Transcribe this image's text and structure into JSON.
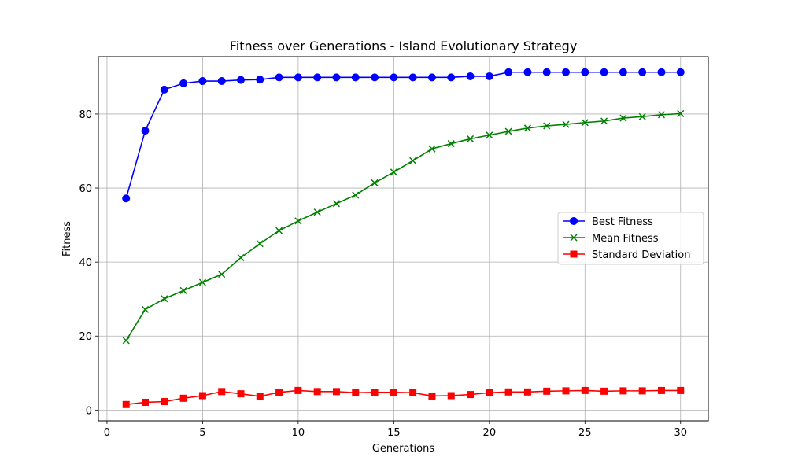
{
  "chart_data": {
    "type": "line",
    "title": "Fitness over Generations - Island Evolutionary Strategy",
    "xlabel": "Generations",
    "ylabel": "Fitness",
    "xlim": [
      -0.45,
      31.45
    ],
    "ylim": [
      -2.9,
      95.5
    ],
    "xticks": [
      0,
      5,
      10,
      15,
      20,
      25,
      30
    ],
    "yticks": [
      0,
      20,
      40,
      60,
      80
    ],
    "grid": true,
    "legend_position": "center-right",
    "x": [
      1,
      2,
      3,
      4,
      5,
      6,
      7,
      8,
      9,
      10,
      11,
      12,
      13,
      14,
      15,
      16,
      17,
      18,
      19,
      20,
      21,
      22,
      23,
      24,
      25,
      26,
      27,
      28,
      29,
      30
    ],
    "series": [
      {
        "name": "Best Fitness",
        "color": "#0000ff",
        "marker": "circle",
        "values": [
          57.2,
          75.5,
          86.6,
          88.3,
          88.9,
          88.9,
          89.2,
          89.3,
          89.9,
          89.9,
          89.9,
          89.9,
          89.9,
          89.9,
          89.9,
          89.9,
          89.9,
          89.9,
          90.2,
          90.2,
          91.3,
          91.3,
          91.3,
          91.3,
          91.3,
          91.3,
          91.3,
          91.3,
          91.3,
          91.3
        ]
      },
      {
        "name": "Mean Fitness",
        "color": "#008000",
        "marker": "x",
        "values": [
          18.8,
          27.2,
          30.1,
          32.3,
          34.5,
          36.7,
          41.2,
          45.0,
          48.5,
          51.1,
          53.5,
          55.8,
          58.1,
          61.4,
          64.3,
          67.4,
          70.6,
          72.0,
          73.3,
          74.3,
          75.3,
          76.2,
          76.8,
          77.2,
          77.7,
          78.1,
          78.9,
          79.3,
          79.8,
          80.1
        ]
      },
      {
        "name": "Standard Deviation",
        "color": "#ff0000",
        "marker": "square",
        "values": [
          1.5,
          2.1,
          2.3,
          3.2,
          3.9,
          5.0,
          4.4,
          3.7,
          4.8,
          5.3,
          5.0,
          5.0,
          4.7,
          4.8,
          4.8,
          4.7,
          3.8,
          3.9,
          4.2,
          4.7,
          4.9,
          4.9,
          5.1,
          5.2,
          5.3,
          5.1,
          5.2,
          5.2,
          5.3,
          5.3
        ]
      }
    ]
  }
}
